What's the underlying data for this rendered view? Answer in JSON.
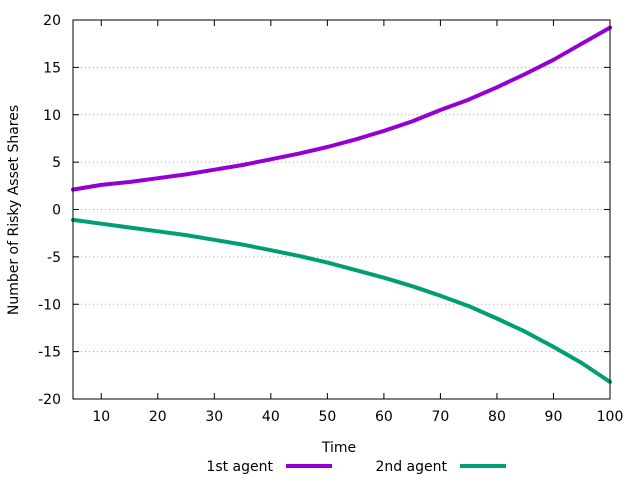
{
  "chart_data": {
    "type": "line",
    "title": "",
    "xlabel": "Time",
    "ylabel": "Number of Risky Asset Shares",
    "xlim": [
      5,
      100
    ],
    "ylim": [
      -20,
      20
    ],
    "xticks": [
      10,
      20,
      30,
      40,
      50,
      60,
      70,
      80,
      90,
      100
    ],
    "yticks": [
      -20,
      -15,
      -10,
      -5,
      0,
      5,
      10,
      15,
      20
    ],
    "grid": "horizontal dotted",
    "legend": "bottom-center",
    "series": [
      {
        "name": "1st agent",
        "color": "#9400d3",
        "x": [
          5,
          10,
          15,
          20,
          25,
          30,
          35,
          40,
          45,
          50,
          55,
          60,
          65,
          70,
          75,
          80,
          85,
          90,
          95,
          100
        ],
        "y": [
          2.1,
          2.6,
          2.9,
          3.3,
          3.7,
          4.2,
          4.7,
          5.3,
          5.9,
          6.6,
          7.4,
          8.3,
          9.3,
          10.5,
          11.6,
          12.9,
          14.3,
          15.8,
          17.5,
          19.2
        ]
      },
      {
        "name": "2nd agent",
        "color": "#009e73",
        "x": [
          5,
          10,
          15,
          20,
          25,
          30,
          35,
          40,
          45,
          50,
          55,
          60,
          65,
          70,
          75,
          80,
          85,
          90,
          95,
          100
        ],
        "y": [
          -1.1,
          -1.5,
          -1.9,
          -2.3,
          -2.7,
          -3.2,
          -3.7,
          -4.3,
          -4.9,
          -5.6,
          -6.4,
          -7.2,
          -8.1,
          -9.1,
          -10.2,
          -11.5,
          -12.9,
          -14.5,
          -16.2,
          -18.2
        ]
      }
    ]
  }
}
